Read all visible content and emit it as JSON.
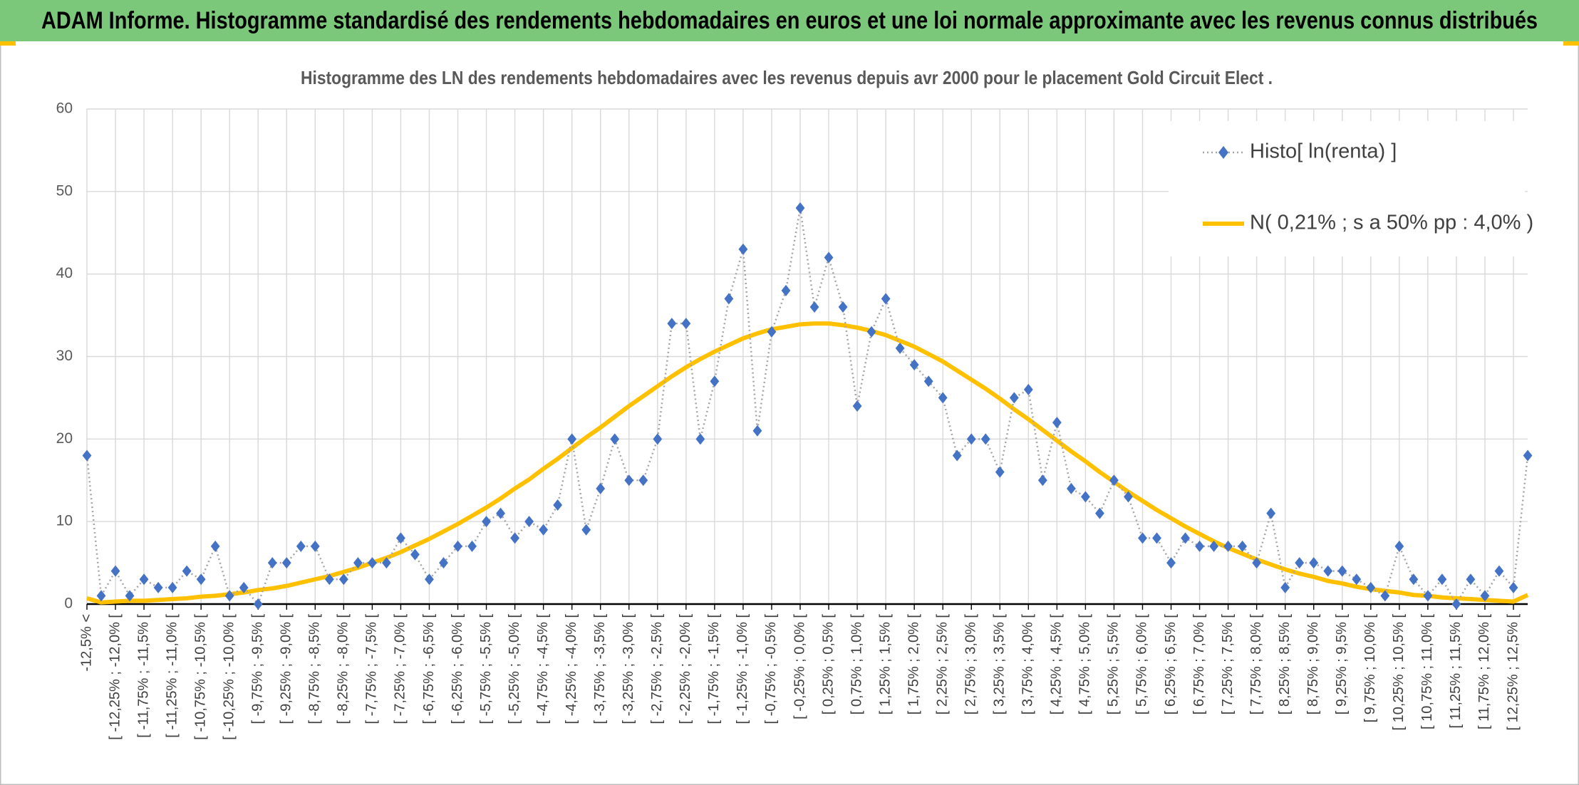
{
  "header": {
    "title": "ADAM Informe. Histogramme standardisé des rendements hebdomadaires en euros et une loi normale approximante avec les revenus connus distribués"
  },
  "chart_data": {
    "type": "line",
    "title": "Histogramme des LN des rendements hebdomadaires avec les revenus depuis avr 2000 pour le placement Gold Circuit Elect .",
    "categories": [
      "-12,5% <",
      null,
      "[ -12,25% ; -12,0% [",
      null,
      "[ -11,75% ; -11,5% [",
      null,
      "[ -11,25% ; -11,0% [",
      null,
      "[ -10,75% ; -10,5% [",
      null,
      "[ -10,25% ; -10,0% [",
      null,
      "[ -9,75% ; -9,5% [",
      null,
      "[ -9,25% ; -9,0% [",
      null,
      "[ -8,75% ; -8,5% [",
      null,
      "[ -8,25% ; -8,0% [",
      null,
      "[ -7,75% ; -7,5% [",
      null,
      "[ -7,25% ; -7,0% [",
      null,
      "[ -6,75% ; -6,5% [",
      null,
      "[ -6,25% ; -6,0% [",
      null,
      "[ -5,75% ; -5,5% [",
      null,
      "[ -5,25% ; -5,0% [",
      null,
      "[ -4,75% ; -4,5% [",
      null,
      "[ -4,25% ; -4,0% [",
      null,
      "[ -3,75% ; -3,5% [",
      null,
      "[ -3,25% ; -3,0% [",
      null,
      "[ -2,75% ; -2,5% [",
      null,
      "[ -2,25% ; -2,0% [",
      null,
      "[ -1,75% ; -1,5% [",
      null,
      "[ -1,25% ; -1,0% [",
      null,
      "[ -0,75% ; -0,5% [",
      null,
      "[ -0,25% ; 0,0% [",
      null,
      "[ 0,25% ; 0,5% [",
      null,
      "[ 0,75% ; 1,0% [",
      null,
      "[ 1,25% ; 1,5% [",
      null,
      "[ 1,75% ; 2,0% [",
      null,
      "[ 2,25% ; 2,5% [",
      null,
      "[ 2,75% ; 3,0% [",
      null,
      "[ 3,25% ; 3,5% [",
      null,
      "[ 3,75% ; 4,0% [",
      null,
      "[ 4,25% ; 4,5% [",
      null,
      "[ 4,75% ; 5,0% [",
      null,
      "[ 5,25% ; 5,5% [",
      null,
      "[ 5,75% ; 6,0% [",
      null,
      "[ 6,25% ; 6,5% [",
      null,
      "[ 6,75% ; 7,0% [",
      null,
      "[ 7,25% ; 7,5% [",
      null,
      "[ 7,75% ; 8,0% [",
      null,
      "[ 8,25% ; 8,5% [",
      null,
      "[ 8,75% ; 9,0% [",
      null,
      "[ 9,25% ; 9,5% [",
      null,
      "[ 9,75% ; 10,0% [",
      null,
      "[ 10,25% ; 10,5% [",
      null,
      "[ 10,75% ; 11,0% [",
      null,
      "[ 11,25% ; 11,5% [",
      null,
      "[ 11,75% ; 12,0% [",
      null,
      "[ 12,25% ; 12,5% [",
      null
    ],
    "series": [
      {
        "name": "Histo[ ln(renta) ]",
        "color": "#4472c4",
        "values": [
          18,
          1,
          4,
          1,
          3,
          2,
          2,
          4,
          3,
          7,
          1,
          2,
          0,
          5,
          5,
          7,
          7,
          3,
          3,
          5,
          5,
          5,
          8,
          6,
          3,
          5,
          7,
          7,
          10,
          11,
          8,
          10,
          9,
          12,
          20,
          9,
          14,
          20,
          15,
          15,
          20,
          34,
          34,
          20,
          27,
          37,
          43,
          21,
          33,
          38,
          48,
          36,
          42,
          36,
          24,
          33,
          37,
          31,
          29,
          27,
          25,
          18,
          20,
          20,
          16,
          25,
          26,
          15,
          22,
          14,
          13,
          11,
          15,
          13,
          8,
          8,
          5,
          8,
          7,
          7,
          7,
          7,
          5,
          11,
          2,
          5,
          5,
          4,
          4,
          3,
          2,
          1,
          7,
          3,
          1,
          3,
          0,
          3,
          1,
          4,
          2,
          18
        ]
      },
      {
        "name": "N( 0,21% ; s a 50% pp : 4,0% )",
        "color": "#ffc000",
        "values": [
          0.7,
          0.2,
          0.3,
          0.4,
          0.4,
          0.5,
          0.6,
          0.7,
          0.9,
          1.0,
          1.2,
          1.4,
          1.7,
          1.9,
          2.2,
          2.6,
          3.0,
          3.4,
          3.9,
          4.4,
          5.0,
          5.6,
          6.3,
          7.1,
          7.9,
          8.8,
          9.7,
          10.7,
          11.7,
          12.8,
          14.0,
          15.1,
          16.4,
          17.6,
          18.9,
          20.2,
          21.4,
          22.7,
          24.0,
          25.2,
          26.4,
          27.6,
          28.7,
          29.7,
          30.6,
          31.4,
          32.2,
          32.8,
          33.3,
          33.6,
          33.9,
          34.0,
          34.0,
          33.8,
          33.5,
          33.1,
          32.6,
          31.9,
          31.2,
          30.3,
          29.4,
          28.3,
          27.2,
          26.1,
          24.9,
          23.6,
          22.4,
          21.1,
          19.8,
          18.5,
          17.3,
          16.0,
          14.8,
          13.6,
          12.5,
          11.4,
          10.4,
          9.4,
          8.5,
          7.6,
          6.8,
          6.1,
          5.4,
          4.8,
          4.2,
          3.7,
          3.3,
          2.8,
          2.5,
          2.1,
          1.8,
          1.6,
          1.4,
          1.1,
          1.0,
          0.8,
          0.7,
          0.6,
          0.5,
          0.4,
          0.3,
          1.1
        ]
      }
    ],
    "ylim": [
      0,
      60
    ],
    "yticks": [
      0,
      10,
      20,
      30,
      40,
      50,
      60
    ],
    "grid": true,
    "legend": "top-right"
  }
}
